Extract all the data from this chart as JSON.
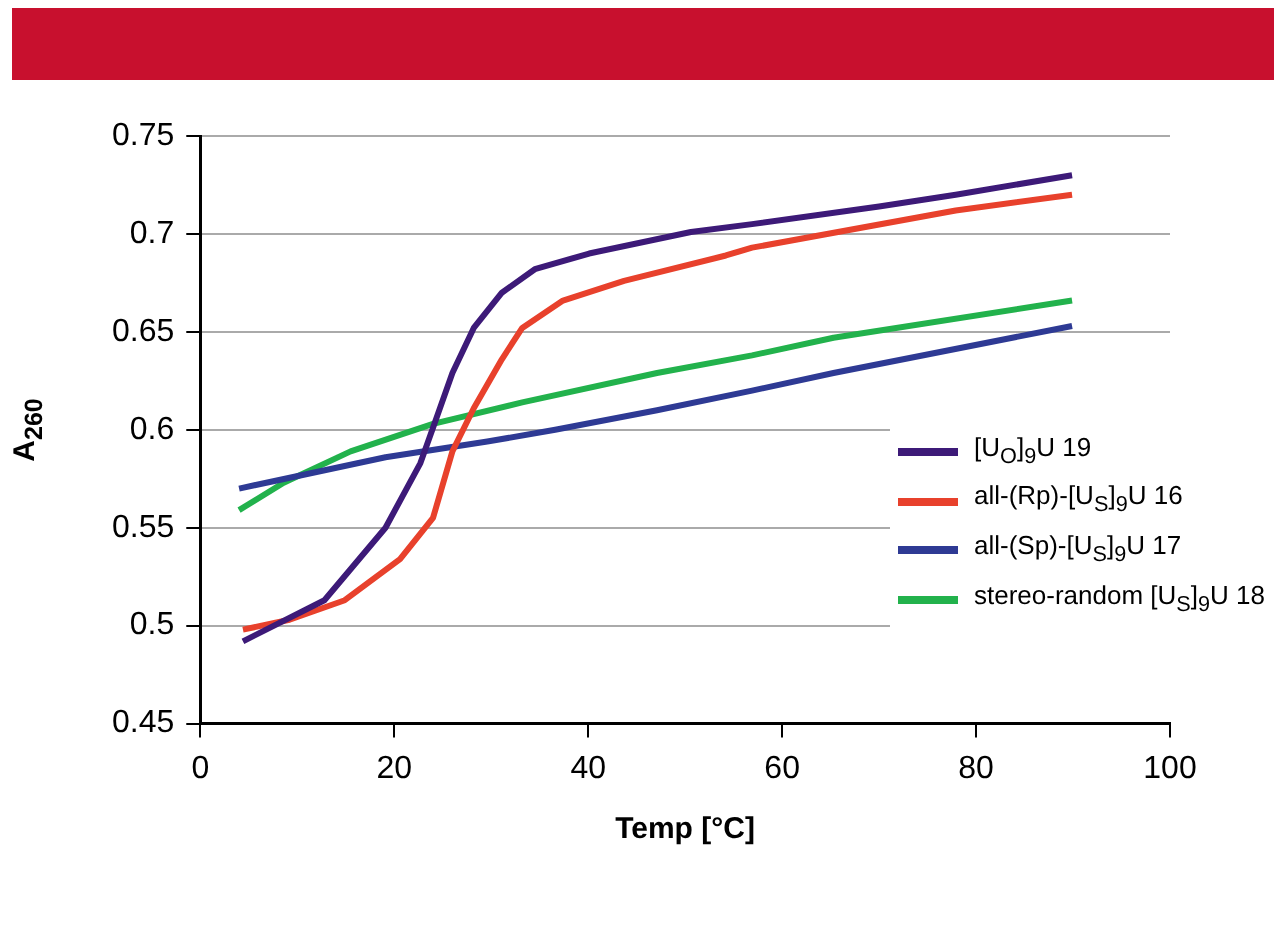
{
  "chart_data": {
    "type": "line",
    "xlabel": "Temp [°C]",
    "ylabel": "A$_{260}$",
    "xlim": [
      0,
      100
    ],
    "xticks": [
      0,
      20,
      40,
      60,
      80,
      100
    ],
    "ylim": [
      0.45,
      0.75
    ],
    "yticks": [
      0.45,
      0.5,
      0.55,
      0.6,
      0.65,
      0.7,
      0.75
    ],
    "grid": "y",
    "legend": "bottom right",
    "marker": "none",
    "series": [
      {
        "name": "[U$_{O}$]$_{9}$U 19",
        "color": "#3d1a78",
        "x": [
          4.4,
          12.8,
          19.1,
          22.7,
          24,
          26,
          28.2,
          31.1,
          34.5,
          40.1,
          50.6,
          56.9,
          70,
          77.9,
          89.9
        ],
        "values": [
          0.492,
          0.513,
          0.55,
          0.583,
          0.601,
          0.629,
          0.652,
          0.67,
          0.682,
          0.69,
          0.701,
          0.705,
          0.714,
          0.72,
          0.73
        ]
      },
      {
        "name": "all-(Rp)-[U$_{S}$]$_{9}$U 16",
        "color": "#e8412c",
        "x": [
          4.4,
          9.2,
          14.9,
          20.6,
          24,
          26,
          28.2,
          31.1,
          33.2,
          37.4,
          43.7,
          54.2,
          56.9,
          77.9,
          89.9
        ],
        "values": [
          0.498,
          0.503,
          0.513,
          0.534,
          0.555,
          0.589,
          0.611,
          0.636,
          0.652,
          0.666,
          0.676,
          0.689,
          0.693,
          0.712,
          0.72
        ]
      },
      {
        "name": "all-(Sp)-[U$_{S}$]$_{9}$U 17",
        "color": "#2e3a94",
        "x": [
          4,
          19.1,
          29.6,
          36.6,
          47.1,
          56.9,
          65.3,
          89.9
        ],
        "values": [
          0.57,
          0.586,
          0.594,
          0.6,
          0.61,
          0.62,
          0.629,
          0.653
        ]
      },
      {
        "name": "stereo-random [U$_{S}$]$_{9}$U 18",
        "color": "#22b24c",
        "x": [
          4,
          8.6,
          15.5,
          24,
          33.2,
          47.1,
          56.9,
          65.3,
          89.9
        ],
        "values": [
          0.559,
          0.573,
          0.589,
          0.603,
          0.614,
          0.629,
          0.638,
          0.647,
          0.666
        ]
      }
    ]
  }
}
